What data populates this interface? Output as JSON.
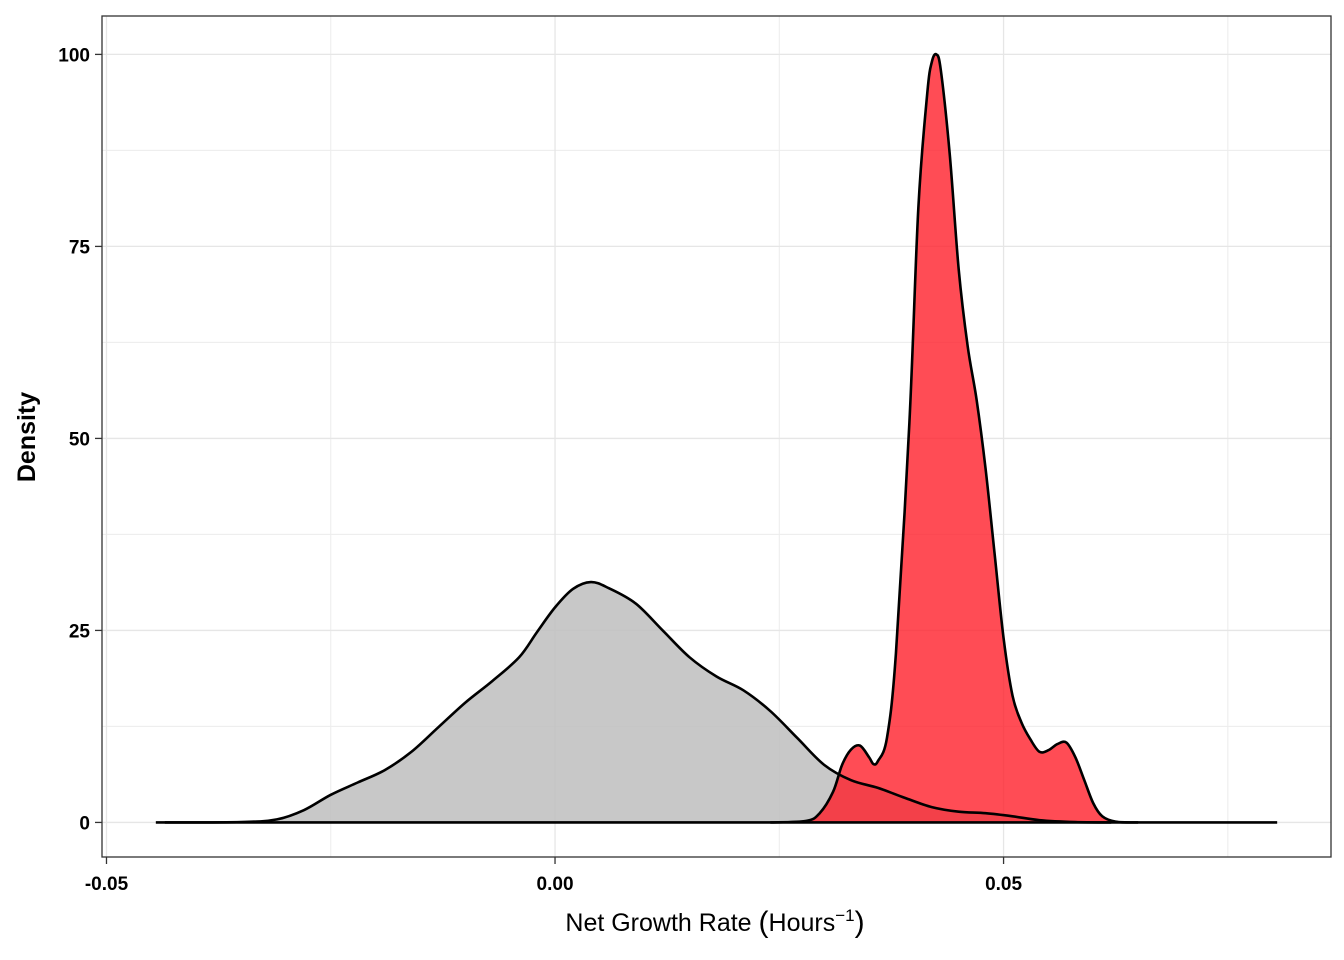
{
  "chart_data": {
    "type": "area",
    "title": "",
    "xlabel": "Net Growth Rate (Hours⁻¹)",
    "xlabel_parts": {
      "main": "Net Growth Rate ",
      "paren_open": "(",
      "unit": "Hours",
      "sup": "−1",
      "paren_close": ")"
    },
    "ylabel": "Density",
    "xlim": [
      -0.0505,
      0.0865
    ],
    "ylim": [
      -4.5,
      105
    ],
    "x_ticks": [
      -0.05,
      0.0,
      0.05
    ],
    "x_tick_labels": [
      "-0.05",
      "0.00",
      "0.05"
    ],
    "y_ticks": [
      0,
      25,
      50,
      75,
      100
    ],
    "y_tick_labels": [
      "0",
      "25",
      "50",
      "75",
      "100"
    ],
    "grid": true,
    "legend": "none",
    "series": [
      {
        "color": "#bebebe",
        "opacity": 0.85,
        "points": [
          [
            -0.0435,
            0
          ],
          [
            -0.035,
            0.05
          ],
          [
            -0.031,
            0.4
          ],
          [
            -0.028,
            1.6
          ],
          [
            -0.025,
            3.6
          ],
          [
            -0.022,
            5.2
          ],
          [
            -0.019,
            6.8
          ],
          [
            -0.016,
            9.2
          ],
          [
            -0.013,
            12.4
          ],
          [
            -0.01,
            15.6
          ],
          [
            -0.007,
            18.4
          ],
          [
            -0.004,
            21.5
          ],
          [
            -0.002,
            24.8
          ],
          [
            0.0,
            28.0
          ],
          [
            0.002,
            30.4
          ],
          [
            0.004,
            31.3
          ],
          [
            0.006,
            30.5
          ],
          [
            0.009,
            28.5
          ],
          [
            0.012,
            25.0
          ],
          [
            0.015,
            21.5
          ],
          [
            0.018,
            19.0
          ],
          [
            0.021,
            17.2
          ],
          [
            0.024,
            14.5
          ],
          [
            0.027,
            11.0
          ],
          [
            0.03,
            7.5
          ],
          [
            0.033,
            5.5
          ],
          [
            0.036,
            4.5
          ],
          [
            0.039,
            3.2
          ],
          [
            0.042,
            2.0
          ],
          [
            0.045,
            1.4
          ],
          [
            0.048,
            1.2
          ],
          [
            0.051,
            0.8
          ],
          [
            0.054,
            0.3
          ],
          [
            0.058,
            0.05
          ],
          [
            0.062,
            0.0
          ]
        ]
      },
      {
        "color": "#ff1a25",
        "opacity": 0.78,
        "points": [
          [
            0.024,
            0.0
          ],
          [
            0.028,
            0.2
          ],
          [
            0.0295,
            1.2
          ],
          [
            0.031,
            4.0
          ],
          [
            0.032,
            7.5
          ],
          [
            0.033,
            9.5
          ],
          [
            0.034,
            10.0
          ],
          [
            0.035,
            8.5
          ],
          [
            0.0355,
            7.6
          ],
          [
            0.036,
            8.0
          ],
          [
            0.037,
            11.0
          ],
          [
            0.038,
            22.0
          ],
          [
            0.0395,
            52.0
          ],
          [
            0.0405,
            80.0
          ],
          [
            0.0415,
            95.0
          ],
          [
            0.042,
            99.0
          ],
          [
            0.0425,
            100.0
          ],
          [
            0.043,
            98.0
          ],
          [
            0.044,
            87.0
          ],
          [
            0.045,
            72.0
          ],
          [
            0.046,
            62.0
          ],
          [
            0.047,
            55.0
          ],
          [
            0.048,
            46.0
          ],
          [
            0.049,
            35.0
          ],
          [
            0.05,
            24.0
          ],
          [
            0.051,
            16.5
          ],
          [
            0.052,
            13.0
          ],
          [
            0.053,
            10.8
          ],
          [
            0.054,
            9.2
          ],
          [
            0.055,
            9.4
          ],
          [
            0.056,
            10.2
          ],
          [
            0.057,
            10.4
          ],
          [
            0.058,
            8.5
          ],
          [
            0.059,
            5.5
          ],
          [
            0.06,
            2.5
          ],
          [
            0.061,
            0.8
          ],
          [
            0.0625,
            0.1
          ],
          [
            0.065,
            0.0
          ]
        ]
      }
    ],
    "baseline": {
      "x": [
        -0.0445,
        0.0805
      ],
      "y": 0
    }
  }
}
